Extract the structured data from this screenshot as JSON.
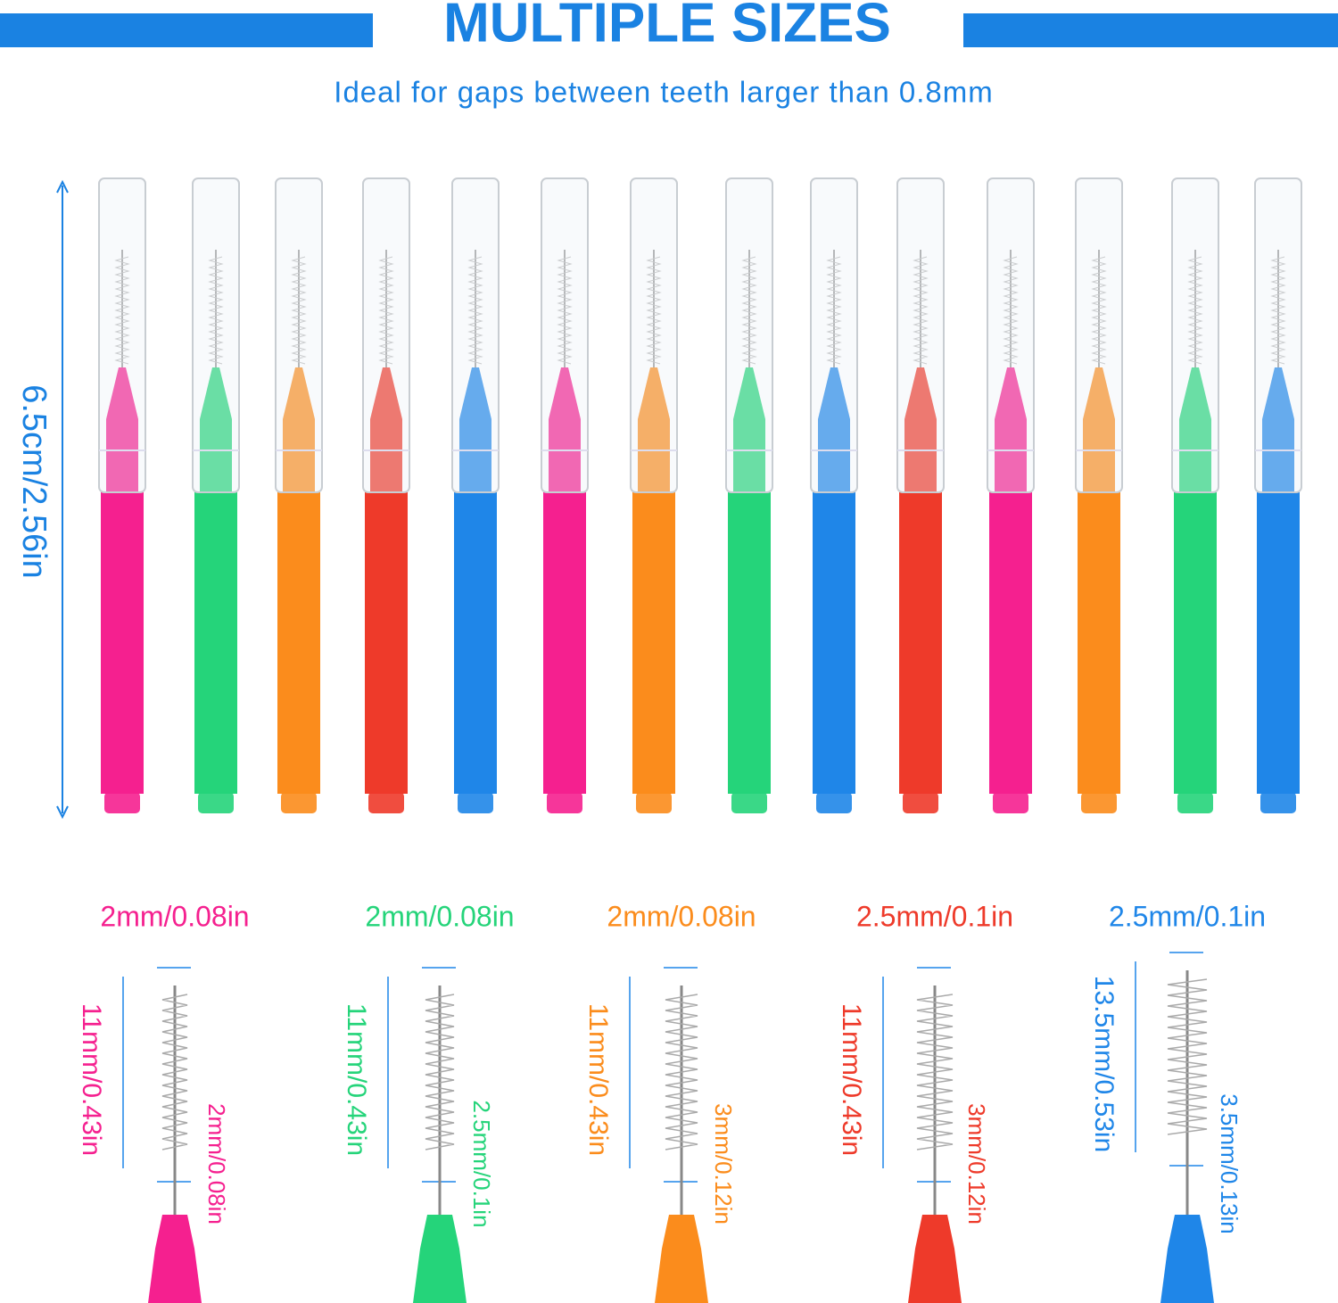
{
  "header": {
    "title": "MULTIPLE SIZES",
    "subtitle": "Ideal for gaps between teeth larger than 0.8mm"
  },
  "height_label": "6.5cm/2.56in",
  "sizes": [
    {
      "spec": "2mm/0.08in",
      "length": "11mm/0.43in",
      "diameter": "2mm/0.08in"
    },
    {
      "spec": "2mm/0.08in",
      "length": "11mm/0.43in",
      "diameter": "2.5mm/0.1in"
    },
    {
      "spec": "2mm/0.08in",
      "length": "11mm/0.43in",
      "diameter": "3mm/0.12in"
    },
    {
      "spec": "2.5mm/0.1in",
      "length": "11mm/0.43in",
      "diameter": "3mm/0.12in"
    },
    {
      "spec": "2.5mm/0.1in",
      "length": "13.5mm/0.53in",
      "diameter": "3.5mm/0.13in"
    }
  ]
}
